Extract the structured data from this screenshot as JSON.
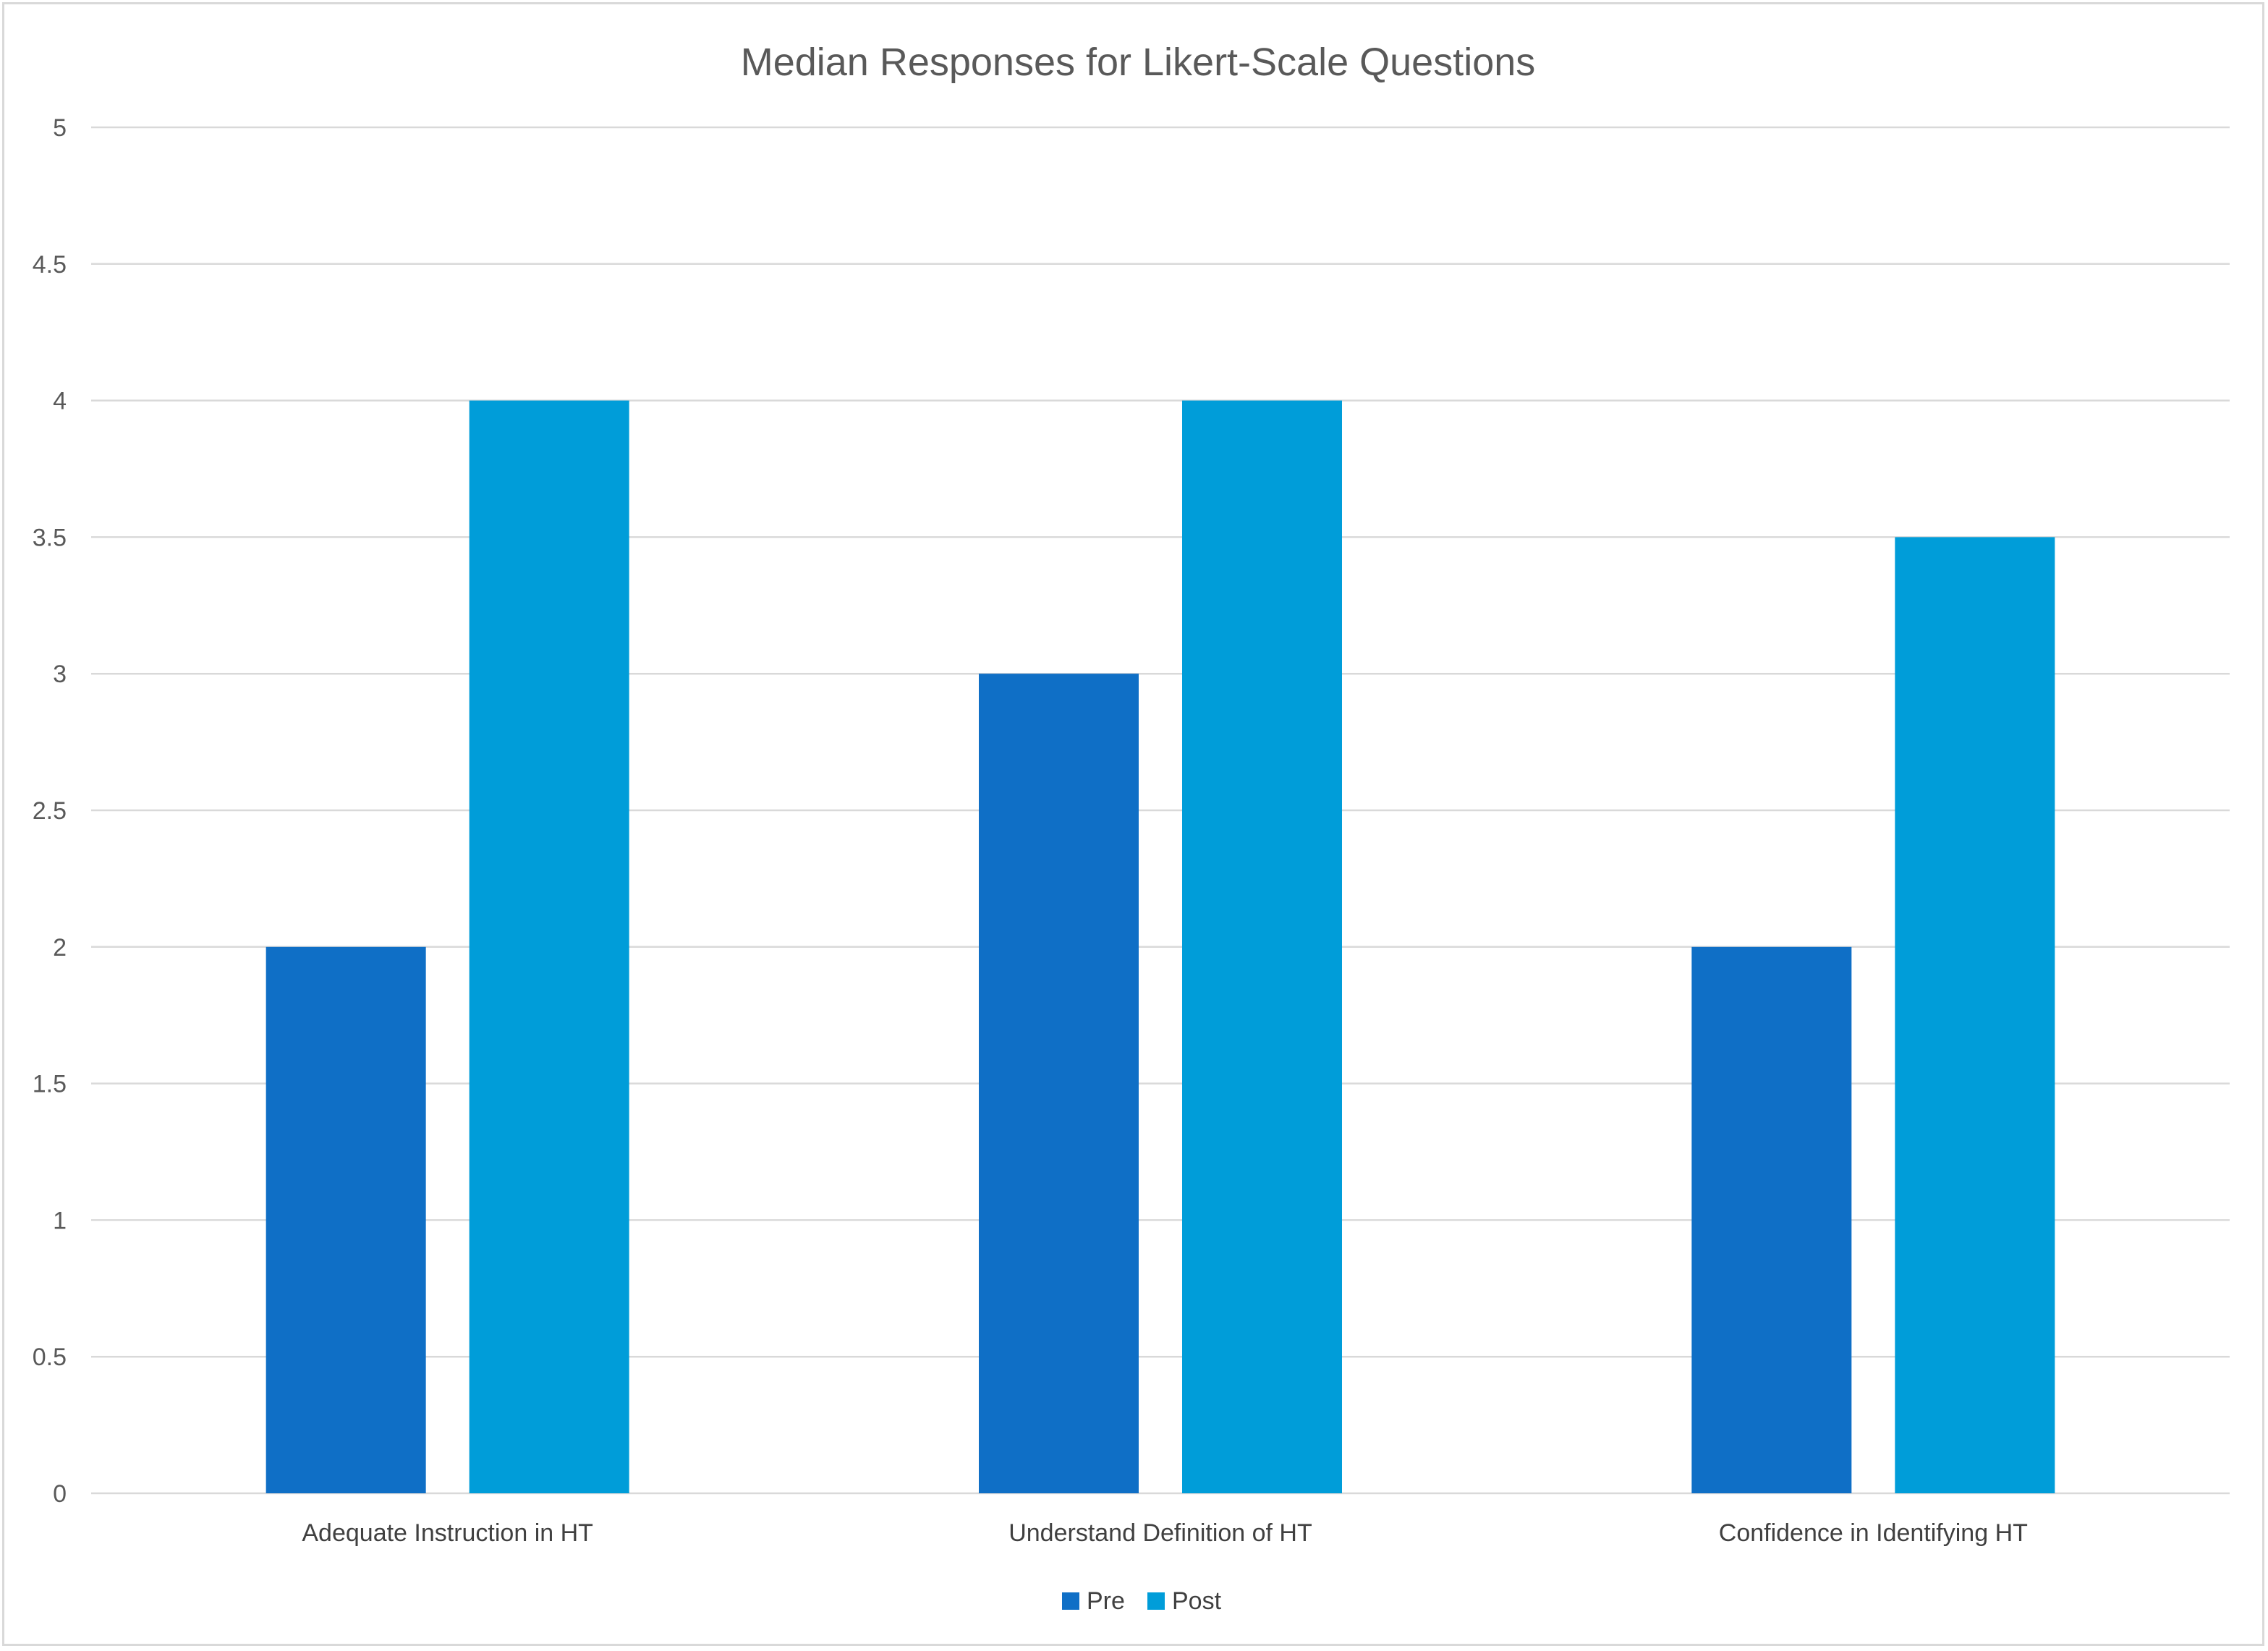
{
  "chart_data": {
    "type": "bar",
    "title": "Median Responses for Likert-Scale Questions",
    "categories": [
      "Adequate Instruction in HT",
      "Understand Definition of HT",
      "Confidence in Identifying HT"
    ],
    "series": [
      {
        "name": "Pre",
        "values": [
          2,
          3,
          2
        ],
        "color": "#0f6fc6"
      },
      {
        "name": "Post",
        "values": [
          4,
          4,
          3.5
        ],
        "color": "#009dd9"
      }
    ],
    "ylim": [
      0,
      5
    ],
    "yticks": [
      "0",
      "0.5",
      "1",
      "1.5",
      "2",
      "2.5",
      "3",
      "3.5",
      "4",
      "4.5",
      "5"
    ],
    "grid": true,
    "legend_position": "bottom"
  }
}
